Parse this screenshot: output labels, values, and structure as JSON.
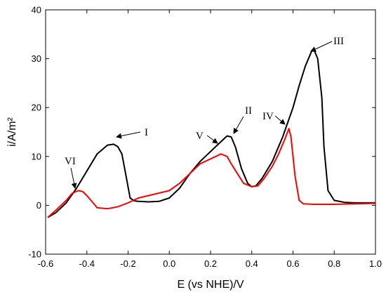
{
  "chart_data": {
    "type": "line",
    "title": "",
    "xlabel": "E (vs NHE)/V",
    "ylabel": "i/A/m²",
    "xlim": [
      -0.6,
      1.0
    ],
    "ylim": [
      -10,
      40
    ],
    "x_ticks": [
      "-0.6",
      "-0.4",
      "-0.2",
      "0.0",
      "0.2",
      "0.4",
      "0.6",
      "0.8",
      "1.0"
    ],
    "y_ticks": [
      "-10",
      "0",
      "10",
      "20",
      "30",
      "40"
    ],
    "grid": false,
    "legend": "none",
    "series": [
      {
        "color": "#000000",
        "x": [
          -0.59,
          -0.55,
          -0.5,
          -0.45,
          -0.4,
          -0.35,
          -0.3,
          -0.27,
          -0.25,
          -0.23,
          -0.21,
          -0.19,
          -0.17,
          -0.15,
          -0.1,
          -0.05,
          0.0,
          0.05,
          0.1,
          0.15,
          0.2,
          0.25,
          0.28,
          0.3,
          0.32,
          0.35,
          0.38,
          0.4,
          0.42,
          0.45,
          0.5,
          0.55,
          0.6,
          0.63,
          0.66,
          0.69,
          0.7,
          0.72,
          0.74,
          0.75,
          0.77,
          0.8,
          0.85,
          0.9,
          0.95,
          1.0
        ],
        "y": [
          -2.5,
          -1.5,
          0.5,
          3.5,
          7.0,
          10.5,
          12.3,
          12.5,
          12.0,
          10.5,
          6.0,
          1.5,
          0.9,
          0.8,
          0.7,
          0.8,
          1.5,
          3.5,
          6.5,
          9.0,
          11.0,
          13.0,
          14.2,
          14.0,
          12.0,
          7.5,
          4.5,
          3.8,
          4.0,
          5.5,
          9.0,
          14.0,
          20.0,
          24.5,
          28.5,
          31.5,
          32.0,
          30.0,
          22.0,
          12.0,
          3.0,
          1.0,
          0.6,
          0.5,
          0.5,
          0.5
        ]
      },
      {
        "color": "#ff0000",
        "x": [
          -0.59,
          -0.55,
          -0.5,
          -0.47,
          -0.44,
          -0.42,
          -0.4,
          -0.37,
          -0.35,
          -0.3,
          -0.25,
          -0.2,
          -0.15,
          -0.1,
          -0.05,
          0.0,
          0.05,
          0.1,
          0.15,
          0.2,
          0.25,
          0.28,
          0.3,
          0.33,
          0.36,
          0.4,
          0.43,
          0.46,
          0.5,
          0.53,
          0.56,
          0.58,
          0.59,
          0.61,
          0.63,
          0.65,
          0.7,
          0.8,
          0.9,
          1.0
        ],
        "y": [
          -2.5,
          -1.0,
          1.0,
          2.5,
          3.0,
          2.8,
          2.0,
          0.5,
          -0.5,
          -0.7,
          -0.3,
          0.5,
          1.5,
          2.0,
          2.5,
          3.0,
          4.5,
          6.5,
          8.5,
          9.5,
          10.5,
          10.0,
          8.5,
          6.5,
          4.5,
          3.8,
          4.0,
          5.5,
          8.0,
          10.5,
          13.5,
          15.7,
          14.0,
          6.0,
          1.0,
          0.3,
          0.2,
          0.2,
          0.3,
          0.4
        ]
      }
    ],
    "annotations": [
      {
        "label": "I"
      },
      {
        "label": "II"
      },
      {
        "label": "III"
      },
      {
        "label": "IV"
      },
      {
        "label": "V"
      },
      {
        "label": "VI"
      }
    ]
  }
}
